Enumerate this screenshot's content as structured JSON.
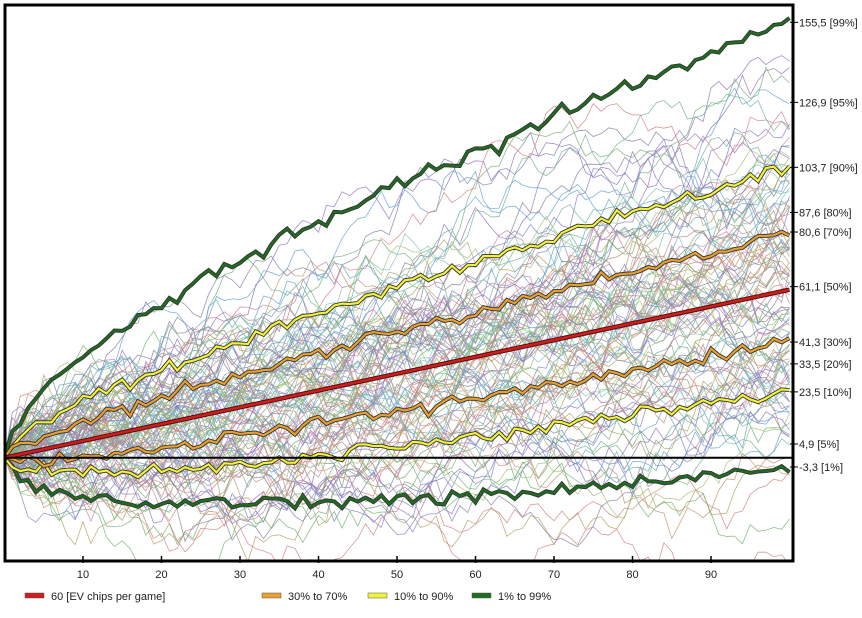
{
  "chart_data": {
    "type": "line",
    "title": "",
    "xlabel": "",
    "ylabel": "",
    "xlim": [
      0,
      100
    ],
    "ylim": [
      -36,
      161
    ],
    "x_ticks": [
      "10",
      "20",
      "30",
      "40",
      "50",
      "60",
      "70",
      "80",
      "90"
    ],
    "grid": false,
    "legend_position": "bottom",
    "ev_line": {
      "label": "60 [EV chips per game]",
      "slope_per_game": 0.6,
      "color": "#cc1f1f"
    },
    "bands": [
      {
        "label": "30% to 70%",
        "color": "#e8a030",
        "lower_end": 41.3,
        "upper_end": 80.6
      },
      {
        "label": "10% to 90%",
        "color": "#f2f23a",
        "lower_end": 23.5,
        "upper_end": 103.7
      },
      {
        "label": "1% to 99%",
        "color": "#1f6e1f",
        "lower_end": -3.3,
        "upper_end": 155.5
      }
    ],
    "right_labels": [
      {
        "value": 155.5,
        "text": "155,5 [99%]"
      },
      {
        "value": 126.9,
        "text": "126,9 [95%]"
      },
      {
        "value": 103.7,
        "text": "103,7 [90%]"
      },
      {
        "value": 87.6,
        "text": "87,6 [80%]"
      },
      {
        "value": 80.6,
        "text": "80,6 [70%]"
      },
      {
        "value": 61.1,
        "text": "61,1 [50%]"
      },
      {
        "value": 41.3,
        "text": "41,3 [30%]"
      },
      {
        "value": 33.5,
        "text": "33,5 [20%]"
      },
      {
        "value": 23.5,
        "text": "23,5 [10%]"
      },
      {
        "value": 4.9,
        "text": "4,9 [5%]"
      },
      {
        "value": -3.3,
        "text": "-3,3 [1%]"
      }
    ],
    "legend": [
      {
        "label": "60 [EV chips per game]",
        "color": "#cc1f1f"
      },
      {
        "label": "30% to 70%",
        "color": "#e8a030"
      },
      {
        "label": "10% to 90%",
        "color": "#f2f23a"
      },
      {
        "label": "1% to 99%",
        "color": "#1f6e1f"
      }
    ]
  }
}
